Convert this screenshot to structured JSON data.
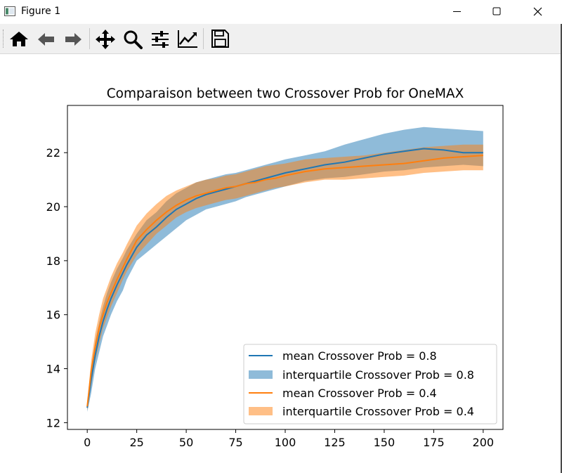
{
  "window": {
    "title": "Figure 1",
    "controls": [
      "minimize",
      "maximize",
      "close"
    ]
  },
  "toolbar": {
    "buttons": [
      {
        "name": "home-icon"
      },
      {
        "name": "back-arrow-icon"
      },
      {
        "name": "forward-arrow-icon"
      },
      {
        "name": "pan-icon"
      },
      {
        "name": "zoom-icon"
      },
      {
        "name": "configure-subplots-icon"
      },
      {
        "name": "edit-axis-icon"
      },
      {
        "name": "save-icon"
      }
    ]
  },
  "chart_data": {
    "type": "line",
    "title": "Comparaison between two Crossover Prob for OneMAX",
    "xlabel": "",
    "ylabel": "",
    "xlim": [
      -10,
      210
    ],
    "ylim": [
      11.75,
      23.75
    ],
    "xticks": [
      0,
      25,
      50,
      75,
      100,
      125,
      150,
      175,
      200
    ],
    "yticks": [
      12,
      14,
      16,
      18,
      20,
      22
    ],
    "grid": false,
    "legend_placement": "lower-right",
    "colors": {
      "blue": "#1f77b4",
      "orange": "#ff7f0e",
      "blue_fill": "#1f77b4",
      "orange_fill": "#ff7f0e"
    },
    "x": [
      0,
      2,
      4,
      6,
      8,
      10,
      12,
      15,
      18,
      20,
      25,
      30,
      35,
      40,
      45,
      50,
      55,
      60,
      65,
      70,
      75,
      80,
      85,
      90,
      95,
      100,
      110,
      120,
      130,
      140,
      150,
      160,
      170,
      180,
      190,
      200
    ],
    "series": [
      {
        "name": "mean Crossover Prob = 0.8",
        "kind": "mean",
        "color": "#1f77b4",
        "values": [
          12.55,
          13.6,
          14.5,
          15.2,
          15.75,
          16.2,
          16.6,
          17.1,
          17.55,
          17.85,
          18.5,
          18.95,
          19.25,
          19.6,
          19.9,
          20.1,
          20.3,
          20.45,
          20.55,
          20.65,
          20.75,
          20.85,
          20.95,
          21.05,
          21.15,
          21.25,
          21.4,
          21.55,
          21.65,
          21.8,
          21.95,
          22.05,
          22.15,
          22.1,
          22.0,
          22.0
        ]
      },
      {
        "name": "interquartile Crossover Prob = 0.8",
        "kind": "band",
        "color": "#1f77b4",
        "lower": [
          12.4,
          13.1,
          14.0,
          14.6,
          15.2,
          15.6,
          16.0,
          16.5,
          16.9,
          17.3,
          18.0,
          18.3,
          18.6,
          18.9,
          19.2,
          19.5,
          19.7,
          19.9,
          20.0,
          20.1,
          20.2,
          20.35,
          20.45,
          20.55,
          20.65,
          20.75,
          20.95,
          21.05,
          21.1,
          21.2,
          21.3,
          21.35,
          21.45,
          21.5,
          21.55,
          21.5
        ],
        "upper": [
          12.7,
          14.0,
          15.0,
          15.7,
          16.3,
          16.8,
          17.2,
          17.7,
          18.1,
          18.4,
          19.0,
          19.5,
          19.8,
          20.2,
          20.5,
          20.7,
          20.9,
          21.0,
          21.1,
          21.2,
          21.25,
          21.35,
          21.45,
          21.55,
          21.65,
          21.75,
          21.9,
          22.05,
          22.3,
          22.5,
          22.7,
          22.85,
          22.95,
          22.9,
          22.85,
          22.8
        ]
      },
      {
        "name": "mean Crossover Prob = 0.4",
        "kind": "mean",
        "color": "#ff7f0e",
        "values": [
          12.6,
          13.9,
          14.8,
          15.5,
          16.0,
          16.45,
          16.8,
          17.3,
          17.75,
          18.05,
          18.75,
          19.15,
          19.5,
          19.8,
          20.05,
          20.25,
          20.4,
          20.5,
          20.6,
          20.7,
          20.75,
          20.85,
          20.9,
          21.0,
          21.05,
          21.15,
          21.3,
          21.4,
          21.45,
          21.5,
          21.55,
          21.6,
          21.7,
          21.8,
          21.85,
          21.9
        ]
      },
      {
        "name": "interquartile Crossover Prob = 0.4",
        "kind": "band",
        "color": "#ff7f0e",
        "lower": [
          12.45,
          13.4,
          14.3,
          14.9,
          15.5,
          15.9,
          16.3,
          16.8,
          17.3,
          17.6,
          18.2,
          18.6,
          19.0,
          19.3,
          19.6,
          19.8,
          19.95,
          20.05,
          20.15,
          20.25,
          20.3,
          20.4,
          20.5,
          20.6,
          20.7,
          20.75,
          20.9,
          21.0,
          21.0,
          21.05,
          21.1,
          21.15,
          21.25,
          21.3,
          21.35,
          21.35
        ],
        "upper": [
          12.75,
          14.3,
          15.3,
          16.0,
          16.6,
          17.0,
          17.4,
          17.9,
          18.3,
          18.6,
          19.3,
          19.75,
          20.1,
          20.4,
          20.6,
          20.75,
          20.9,
          21.0,
          21.05,
          21.15,
          21.2,
          21.3,
          21.4,
          21.5,
          21.55,
          21.6,
          21.75,
          21.8,
          21.85,
          21.9,
          22.0,
          22.1,
          22.2,
          22.25,
          22.3,
          22.3
        ]
      }
    ],
    "legend": [
      "mean Crossover Prob = 0.8",
      "interquartile Crossover Prob = 0.8",
      "mean Crossover Prob = 0.4",
      "interquartile Crossover Prob = 0.4"
    ]
  }
}
